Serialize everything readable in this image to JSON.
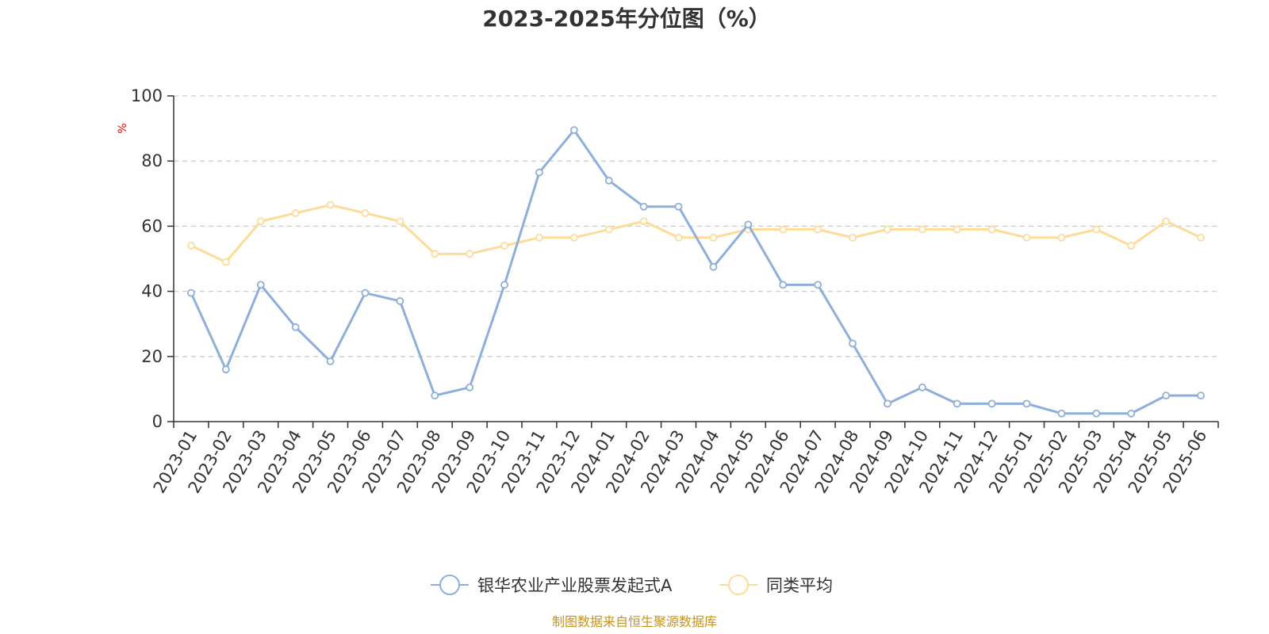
{
  "chart_data": {
    "type": "line",
    "title": "2023-2025年分位图（%）",
    "ylabel": "%",
    "ylim": [
      0,
      100
    ],
    "yticks": [
      0,
      20,
      40,
      60,
      80,
      100
    ],
    "grid": true,
    "legend_position": "bottom",
    "x": [
      "2023-01",
      "2023-02",
      "2023-03",
      "2023-04",
      "2023-05",
      "2023-06",
      "2023-07",
      "2023-08",
      "2023-09",
      "2023-10",
      "2023-11",
      "2023-12",
      "2024-01",
      "2024-02",
      "2024-03",
      "2024-04",
      "2024-05",
      "2024-06",
      "2024-07",
      "2024-08",
      "2024-09",
      "2024-10",
      "2024-11",
      "2024-12",
      "2025-01",
      "2025-02",
      "2025-03",
      "2025-04",
      "2025-05",
      "2025-06"
    ],
    "series": [
      {
        "name": "银华农业产业股票发起式A",
        "color": "#8fafdb",
        "values": [
          39.5,
          16,
          42,
          29,
          18.5,
          39.5,
          37,
          8,
          10.5,
          42,
          76.5,
          89.5,
          74,
          66,
          66,
          47.5,
          60.5,
          42,
          42,
          24,
          5.5,
          10.5,
          5.5,
          5.5,
          5.5,
          2.5,
          2.5,
          2.5,
          8,
          8
        ]
      },
      {
        "name": "同类平均",
        "color": "#fddc9a",
        "values": [
          54,
          49,
          61.5,
          64,
          66.5,
          64,
          61.5,
          51.5,
          51.5,
          54,
          56.5,
          56.5,
          59,
          61.5,
          56.5,
          56.5,
          59,
          59,
          59,
          56.5,
          59,
          59,
          59,
          59,
          56.5,
          56.5,
          59,
          54,
          61.5,
          56.5
        ]
      }
    ]
  },
  "source": {
    "text": "制图数据来自恒生聚源数据库",
    "color": "#c8921e"
  },
  "colors": {
    "axis": "#333333",
    "grid": "#cccccc",
    "unit_label": "#ff0000"
  }
}
